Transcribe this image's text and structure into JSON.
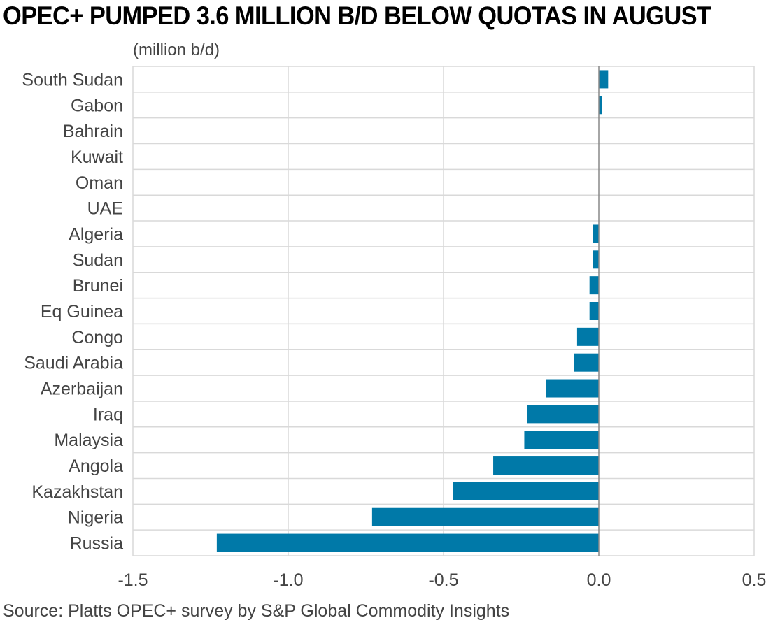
{
  "chart_data": {
    "type": "bar",
    "orientation": "horizontal",
    "title": "OPEC+ PUMPED 3.6 MILLION B/D BELOW QUOTAS IN AUGUST",
    "unit_label": "(million b/d)",
    "source": "Source: Platts OPEC+ survey by S&P Global Commodity Insights",
    "categories": [
      "South Sudan",
      "Gabon",
      "Bahrain",
      "Kuwait",
      "Oman",
      "UAE",
      "Algeria",
      "Sudan",
      "Brunei",
      "Eq Guinea",
      "Congo",
      "Saudi Arabia",
      "Azerbaijan",
      "Iraq",
      "Malaysia",
      "Angola",
      "Kazakhstan",
      "Nigeria",
      "Russia"
    ],
    "values": [
      0.03,
      0.01,
      0.0,
      0.0,
      0.0,
      0.0,
      -0.02,
      -0.02,
      -0.03,
      -0.03,
      -0.07,
      -0.08,
      -0.17,
      -0.23,
      -0.24,
      -0.34,
      -0.47,
      -0.73,
      -1.23
    ],
    "xlim": [
      -1.5,
      0.5
    ],
    "x_ticks": [
      -1.5,
      -1.0,
      -0.5,
      0.0,
      0.5
    ],
    "x_tick_labels": [
      "-1.5",
      "-1.0",
      "-0.5",
      "0.0",
      "0.5"
    ],
    "grid": true,
    "legend": "none",
    "bar_color": "#0079A8",
    "grid_color": "#D9D9D9",
    "zero_line_color": "#888888"
  }
}
